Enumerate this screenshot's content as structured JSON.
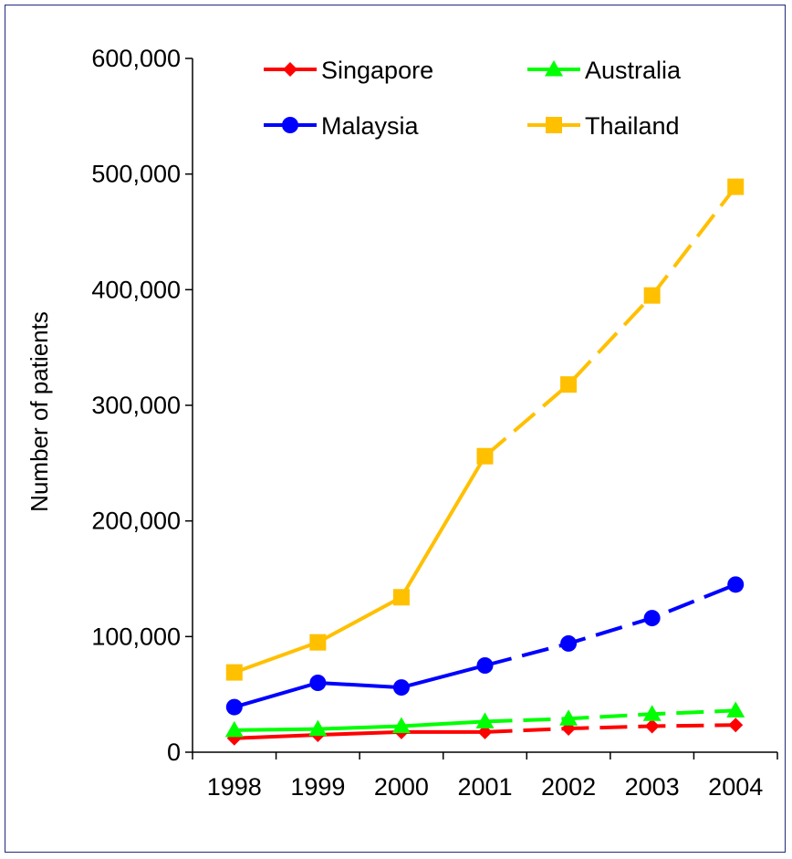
{
  "chart_data": {
    "type": "line",
    "title": "",
    "xlabel": "",
    "ylabel": "Number of patients",
    "categories": [
      "1998",
      "1999",
      "2000",
      "2001",
      "2002",
      "2003",
      "2004"
    ],
    "ylim": [
      0,
      600000
    ],
    "yticks": [
      0,
      100000,
      200000,
      300000,
      400000,
      500000,
      600000
    ],
    "ytick_labels": [
      "0",
      "100,000",
      "200,000",
      "300,000",
      "400,000",
      "500,000",
      "600,000"
    ],
    "grid": false,
    "legend_position": "top",
    "solid_through": "2001",
    "dashed_from": "2001",
    "series": [
      {
        "name": "Singapore",
        "color": "#ff0000",
        "marker": "diamond",
        "values": [
          12000,
          15000,
          17500,
          17500,
          20500,
          22500,
          23500
        ]
      },
      {
        "name": "Australia",
        "color": "#00ff00",
        "marker": "triangle",
        "values": [
          19000,
          20000,
          22500,
          26500,
          29000,
          33000,
          36000
        ]
      },
      {
        "name": "Malaysia",
        "color": "#0000ff",
        "marker": "circle",
        "values": [
          39000,
          60000,
          56000,
          75000,
          94000,
          116000,
          145000
        ]
      },
      {
        "name": "Thailand",
        "color": "#ffc000",
        "marker": "square",
        "values": [
          69000,
          95000,
          134000,
          256000,
          318000,
          395000,
          489000
        ]
      }
    ]
  }
}
